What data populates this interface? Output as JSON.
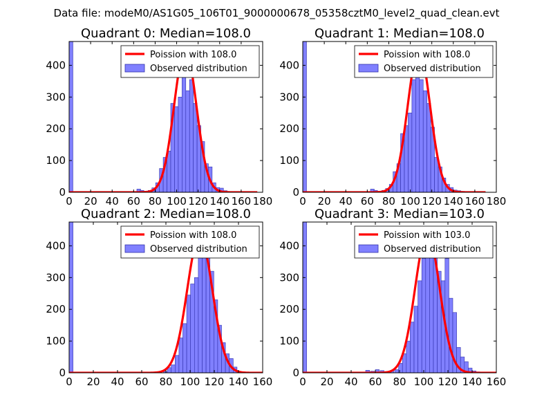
{
  "figure": {
    "suptitle": "Data file: modeM0/AS1G05_106T01_9000000678_05358cztM0_level2_quad_clean.evt"
  },
  "colors": {
    "bar_fill": "#8080ff",
    "bar_edge": "#3030aa",
    "curve": "#ff0000",
    "axes": "#000000"
  },
  "chart_data": [
    {
      "type": "bar",
      "title": "Quadrant 0: Median=108.0",
      "xlim": [
        0,
        180
      ],
      "ylim": [
        0,
        475
      ],
      "xticks": [
        0,
        20,
        40,
        60,
        80,
        100,
        120,
        140,
        160,
        180
      ],
      "yticks": [
        0,
        100,
        200,
        300,
        400
      ],
      "bin_width": 3.5,
      "legend": {
        "position": "top-right",
        "curve_label": "Poission with 108.0",
        "bars_label": "Observed distribution"
      },
      "bars": [
        [
          0,
          480
        ],
        [
          63,
          10
        ],
        [
          66,
          6
        ],
        [
          70,
          3
        ],
        [
          73.5,
          6
        ],
        [
          77,
          14
        ],
        [
          80.5,
          30
        ],
        [
          84,
          75
        ],
        [
          87.5,
          110
        ],
        [
          91,
          130
        ],
        [
          94.5,
          280
        ],
        [
          98,
          270
        ],
        [
          101.5,
          300
        ],
        [
          105,
          380
        ],
        [
          108.5,
          320
        ],
        [
          112,
          355
        ],
        [
          115.5,
          280
        ],
        [
          119,
          210
        ],
        [
          122.5,
          160
        ],
        [
          126,
          90
        ],
        [
          129.5,
          80
        ],
        [
          133,
          30
        ],
        [
          136.5,
          15
        ],
        [
          140,
          13
        ],
        [
          143.5,
          5
        ],
        [
          147,
          2
        ]
      ],
      "poisson_mean": 108,
      "poisson_peak": 450,
      "curve_xmax": 175
    },
    {
      "type": "bar",
      "title": "Quadrant 1: Median=108.0",
      "xlim": [
        0,
        180
      ],
      "ylim": [
        0,
        475
      ],
      "xticks": [
        0,
        20,
        40,
        60,
        80,
        100,
        120,
        140,
        160,
        180
      ],
      "yticks": [
        0,
        100,
        200,
        300,
        400
      ],
      "bin_width": 3.5,
      "legend": {
        "position": "top-right",
        "curve_label": "Poission with 108.0",
        "bars_label": "Observed distribution"
      },
      "bars": [
        [
          0,
          480
        ],
        [
          63,
          10
        ],
        [
          66,
          6
        ],
        [
          70,
          3
        ],
        [
          73.5,
          6
        ],
        [
          77,
          12
        ],
        [
          80.5,
          25
        ],
        [
          84,
          65
        ],
        [
          87.5,
          90
        ],
        [
          91,
          185
        ],
        [
          94.5,
          210
        ],
        [
          98,
          250
        ],
        [
          101.5,
          355
        ],
        [
          105,
          450
        ],
        [
          108.5,
          355
        ],
        [
          112,
          320
        ],
        [
          115.5,
          280
        ],
        [
          119,
          205
        ],
        [
          122.5,
          110
        ],
        [
          126,
          80
        ],
        [
          129.5,
          45
        ],
        [
          133,
          25
        ],
        [
          136.5,
          15
        ],
        [
          140,
          7
        ],
        [
          143.5,
          5
        ],
        [
          147,
          3
        ],
        [
          150.5,
          2
        ]
      ],
      "poisson_mean": 108,
      "poisson_peak": 450,
      "curve_xmax": 170
    },
    {
      "type": "bar",
      "title": "Quadrant 2: Median=108.0",
      "xlim": [
        0,
        160
      ],
      "ylim": [
        0,
        475
      ],
      "xticks": [
        0,
        20,
        40,
        60,
        80,
        100,
        120,
        140,
        160
      ],
      "yticks": [
        0,
        100,
        200,
        300,
        400
      ],
      "bin_width": 3.2,
      "legend": {
        "position": "top-right",
        "curve_label": "Poission with 108.0",
        "bars_label": "Observed distribution"
      },
      "bars": [
        [
          0,
          480
        ],
        [
          78,
          4
        ],
        [
          81.2,
          16
        ],
        [
          84.4,
          25
        ],
        [
          87.6,
          55
        ],
        [
          90.8,
          110
        ],
        [
          94,
          155
        ],
        [
          97.2,
          245
        ],
        [
          100.4,
          280
        ],
        [
          103.6,
          300
        ],
        [
          106.8,
          370
        ],
        [
          110,
          430
        ],
        [
          113.2,
          400
        ],
        [
          116.4,
          320
        ],
        [
          119.6,
          230
        ],
        [
          122.8,
          150
        ],
        [
          126,
          95
        ],
        [
          129.2,
          60
        ],
        [
          132.4,
          45
        ],
        [
          135.6,
          18
        ],
        [
          138.8,
          5
        ],
        [
          142,
          3
        ],
        [
          145.2,
          2
        ]
      ],
      "poisson_mean": 108,
      "poisson_peak": 432,
      "curve_xmax": 160
    },
    {
      "type": "bar",
      "title": "Quadrant 3: Median=103.0",
      "xlim": [
        0,
        160
      ],
      "ylim": [
        0,
        475
      ],
      "xticks": [
        0,
        20,
        40,
        60,
        80,
        100,
        120,
        140,
        160
      ],
      "yticks": [
        0,
        100,
        200,
        300,
        400
      ],
      "bin_width": 3.2,
      "legend": {
        "position": "top-right",
        "curve_label": "Poission with 103.0",
        "bars_label": "Observed distribution"
      },
      "bars": [
        [
          0,
          480
        ],
        [
          52,
          8
        ],
        [
          56,
          5
        ],
        [
          60,
          10
        ],
        [
          64,
          7
        ],
        [
          68,
          4
        ],
        [
          72,
          5
        ],
        [
          76,
          10
        ],
        [
          79.2,
          30
        ],
        [
          82.4,
          60
        ],
        [
          85.6,
          100
        ],
        [
          88.8,
          160
        ],
        [
          92,
          210
        ],
        [
          95.2,
          290
        ],
        [
          98.4,
          360
        ],
        [
          101.6,
          440
        ],
        [
          104.8,
          440
        ],
        [
          108,
          390
        ],
        [
          111.2,
          320
        ],
        [
          114.4,
          290
        ],
        [
          117.6,
          360
        ],
        [
          120.8,
          235
        ],
        [
          124,
          190
        ],
        [
          127.2,
          80
        ],
        [
          130.4,
          50
        ],
        [
          133.6,
          35
        ],
        [
          136.8,
          15
        ],
        [
          140,
          6
        ],
        [
          143.2,
          3
        ]
      ],
      "poisson_mean": 103,
      "poisson_peak": 440,
      "curve_xmax": 160
    }
  ]
}
